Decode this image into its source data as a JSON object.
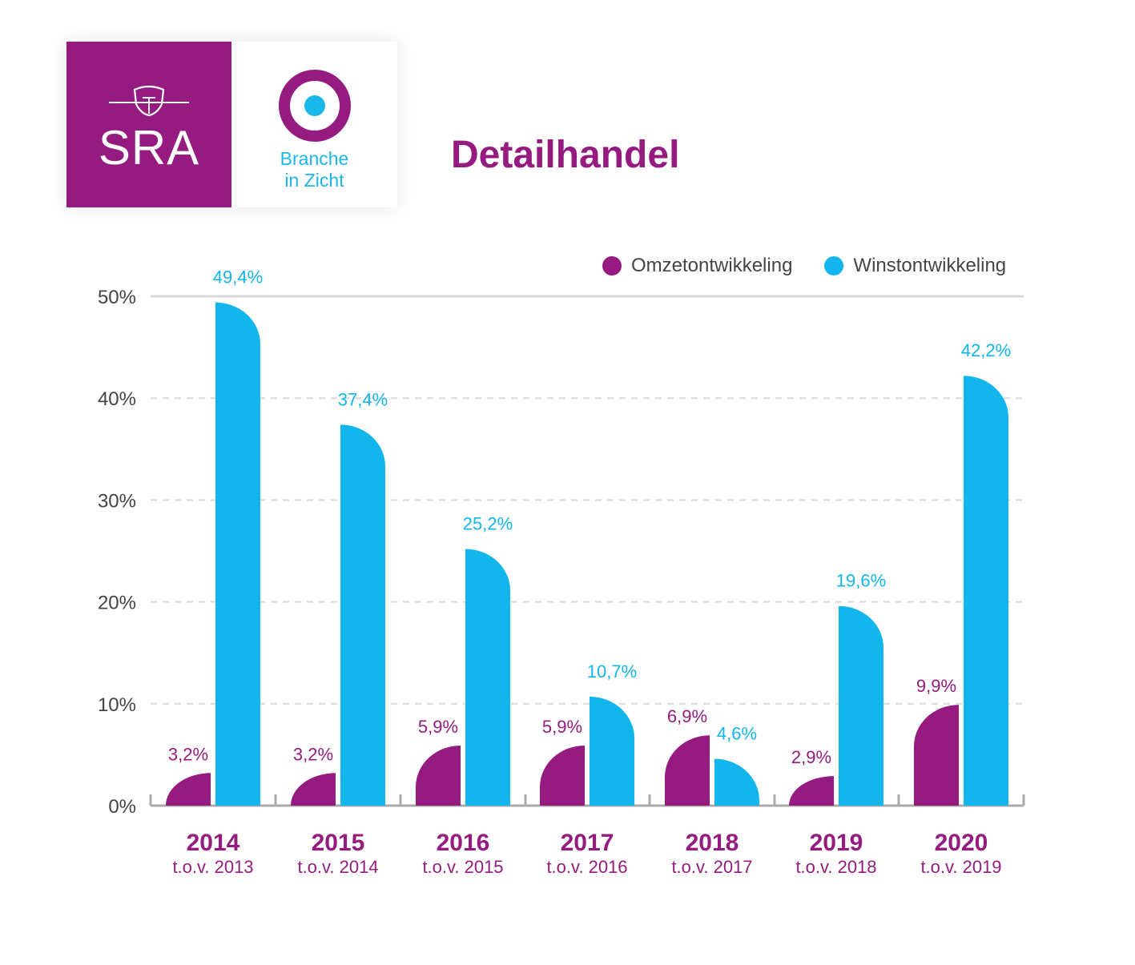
{
  "header": {
    "logo_sra_label": "SRA",
    "logo_biz_line1": "Branche",
    "logo_biz_line2": "in Zicht",
    "title": "Detailhandel"
  },
  "colors": {
    "primary_purple": "#951b81",
    "accent_blue": "#12b6ec",
    "axis_gray": "#aaaaaa",
    "grid_gray": "#d9d9d9",
    "text_gray": "#444444"
  },
  "icons": {
    "sra_emblem": "shield-icon",
    "branche_emblem": "target-icon"
  },
  "chart_data": {
    "type": "bar",
    "title": "Detailhandel",
    "categories": [
      "2014",
      "2015",
      "2016",
      "2017",
      "2018",
      "2019",
      "2020"
    ],
    "category_sublabels": [
      "t.o.v. 2013",
      "t.o.v. 2014",
      "t.o.v. 2015",
      "t.o.v. 2016",
      "t.o.v. 2017",
      "t.o.v. 2018",
      "t.o.v. 2019"
    ],
    "series": [
      {
        "name": "Omzetontwikkeling",
        "color": "#951b81",
        "values": [
          3.2,
          3.2,
          5.9,
          5.9,
          6.9,
          2.9,
          9.9
        ],
        "labels": [
          "3,2%",
          "3,2%",
          "5,9%",
          "5,9%",
          "6,9%",
          "2,9%",
          "9,9%"
        ]
      },
      {
        "name": "Winstontwikkeling",
        "color": "#12b6ec",
        "values": [
          49.4,
          37.4,
          25.2,
          10.7,
          4.6,
          19.6,
          42.2
        ],
        "labels": [
          "49,4%",
          "37,4%",
          "25,2%",
          "10,7%",
          "4,6%",
          "19,6%",
          "42,2%"
        ]
      }
    ],
    "yticks": [
      0,
      10,
      20,
      30,
      40,
      50
    ],
    "ytick_labels": [
      "0%",
      "10%",
      "20%",
      "30%",
      "40%",
      "50%"
    ],
    "ylim": [
      0,
      50
    ],
    "xlabel": "",
    "ylabel": "",
    "grid": true,
    "legend_position": "top-right"
  }
}
